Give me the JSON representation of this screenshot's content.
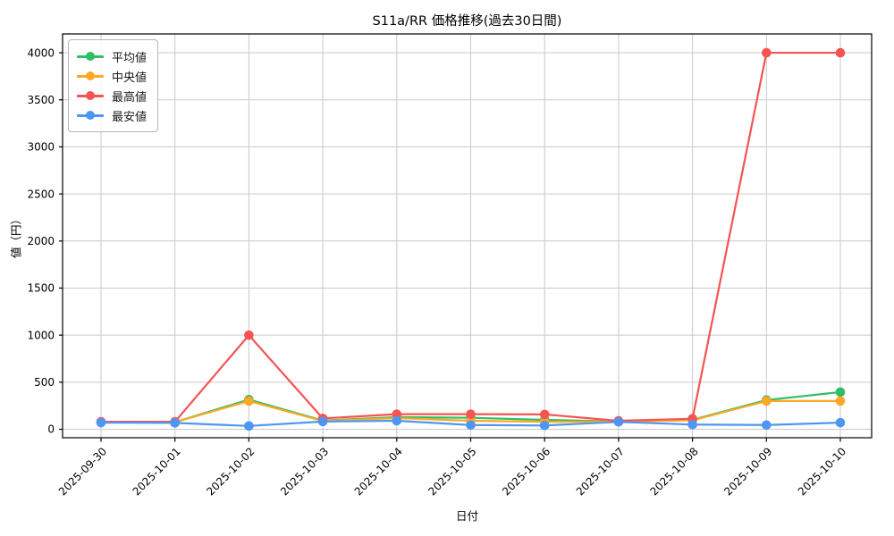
{
  "chart_data": {
    "type": "line",
    "title": "S11a/RR 価格推移(過去30日間)",
    "xlabel": "日付",
    "ylabel": "値（円）",
    "categories": [
      "2025-09-30",
      "2025-10-01",
      "2025-10-02",
      "2025-10-03",
      "2025-10-04",
      "2025-10-05",
      "2025-10-06",
      "2025-10-07",
      "2025-10-08",
      "2025-10-09",
      "2025-10-10"
    ],
    "series": [
      {
        "key": "average",
        "name": "平均値",
        "color": "#2fbe63",
        "values": [
          76,
          76,
          315,
          92,
          128,
          122,
          100,
          82,
          100,
          310,
          395
        ]
      },
      {
        "key": "median",
        "name": "中央値",
        "color": "#ffa726",
        "values": [
          75,
          75,
          300,
          88,
          118,
          90,
          80,
          80,
          96,
          300,
          300
        ]
      },
      {
        "key": "max",
        "name": "最高値",
        "color": "#f65353",
        "values": [
          80,
          80,
          1000,
          115,
          160,
          160,
          158,
          90,
          112,
          4000,
          4000
        ]
      },
      {
        "key": "min",
        "name": "最安値",
        "color": "#4d97f2",
        "values": [
          70,
          68,
          35,
          82,
          90,
          45,
          40,
          78,
          50,
          45,
          70
        ]
      }
    ],
    "yticks": [
      0,
      500,
      1000,
      1500,
      2000,
      2500,
      3000,
      3500,
      4000
    ],
    "ylim": [
      -90,
      4200
    ],
    "grid": true,
    "legend_position": "upper-left",
    "marker": "circle"
  },
  "colors": {
    "grid": "#c9c9c9",
    "spine": "#000000",
    "tick_text": "#000000",
    "background": "#ffffff"
  }
}
